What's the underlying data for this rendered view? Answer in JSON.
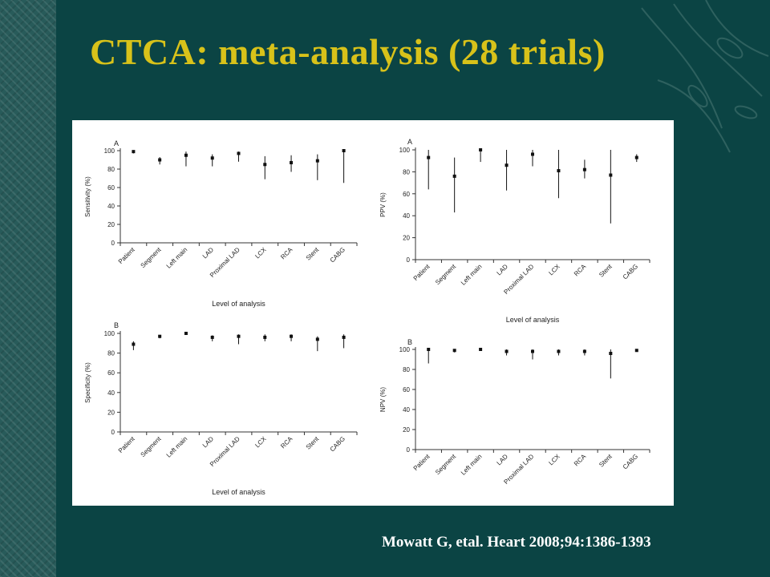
{
  "slide": {
    "title": "CTCA: meta-analysis (28 trials)",
    "citation": "Mowatt G, etal. Heart 2008;94:1386-1393",
    "colors": {
      "background": "#0b4444",
      "title": "#d8c21a",
      "citation": "#ffffff",
      "figure_bg": "#ffffff"
    }
  },
  "chart_data": [
    {
      "type": "scatter",
      "panel_label": "A",
      "ylabel": "Sensitivity (%)",
      "xlabel": "Level of analysis",
      "ylim": [
        0,
        100
      ],
      "yticks": [
        0,
        20,
        40,
        60,
        80,
        100
      ],
      "categories": [
        "Patient",
        "Segment",
        "Left main",
        "LAD",
        "Proximal LAD",
        "LCX",
        "RCA",
        "Stent",
        "CABG"
      ],
      "values": [
        99,
        90,
        95,
        92,
        97,
        85,
        87,
        89,
        100
      ],
      "ci_low": [
        97,
        85,
        83,
        83,
        88,
        69,
        77,
        68,
        65
      ],
      "ci_high": [
        100,
        93,
        99,
        96,
        99,
        94,
        95,
        96,
        100
      ]
    },
    {
      "type": "scatter",
      "panel_label": "A",
      "ylabel": "PPV (%)",
      "xlabel": "Level of analysis",
      "ylim": [
        0,
        100
      ],
      "yticks": [
        0,
        20,
        40,
        60,
        80,
        100
      ],
      "categories": [
        "Patient",
        "Segment",
        "Left main",
        "LAD",
        "Proximal LAD",
        "LCX",
        "RCA",
        "Stent",
        "CABG"
      ],
      "values": [
        93,
        76,
        100,
        86,
        96,
        81,
        82,
        77,
        93
      ],
      "ci_low": [
        64,
        43,
        89,
        63,
        85,
        56,
        74,
        33,
        89
      ],
      "ci_high": [
        100,
        93,
        100,
        100,
        100,
        100,
        91,
        100,
        96
      ]
    },
    {
      "type": "scatter",
      "panel_label": "B",
      "ylabel": "Specificity (%)",
      "xlabel": "Level of analysis",
      "ylim": [
        0,
        100
      ],
      "yticks": [
        0,
        20,
        40,
        60,
        80,
        100
      ],
      "categories": [
        "Patient",
        "Segment",
        "Left main",
        "LAD",
        "Proximal LAD",
        "LCX",
        "RCA",
        "Stent",
        "CABG"
      ],
      "values": [
        89,
        97,
        100,
        96,
        97,
        96,
        97,
        94,
        96
      ],
      "ci_low": [
        83,
        95,
        99,
        92,
        89,
        92,
        92,
        82,
        85
      ],
      "ci_high": [
        92,
        98,
        100,
        98,
        99,
        99,
        99,
        97,
        99
      ]
    },
    {
      "type": "scatter",
      "panel_label": "B",
      "ylabel": "NPV (%)",
      "xlabel": "",
      "ylim": [
        0,
        100
      ],
      "yticks": [
        0,
        20,
        40,
        60,
        80,
        100
      ],
      "categories": [
        "Patient",
        "Segment",
        "Left main",
        "LAD",
        "Proximal LAD",
        "LCX",
        "RCA",
        "Stent",
        "CABG"
      ],
      "values": [
        100,
        99,
        100,
        98,
        98,
        98,
        98,
        96,
        99
      ],
      "ci_low": [
        86,
        97,
        99,
        94,
        90,
        94,
        94,
        71,
        98
      ],
      "ci_high": [
        100,
        100,
        100,
        100,
        100,
        100,
        100,
        100,
        100
      ]
    }
  ]
}
